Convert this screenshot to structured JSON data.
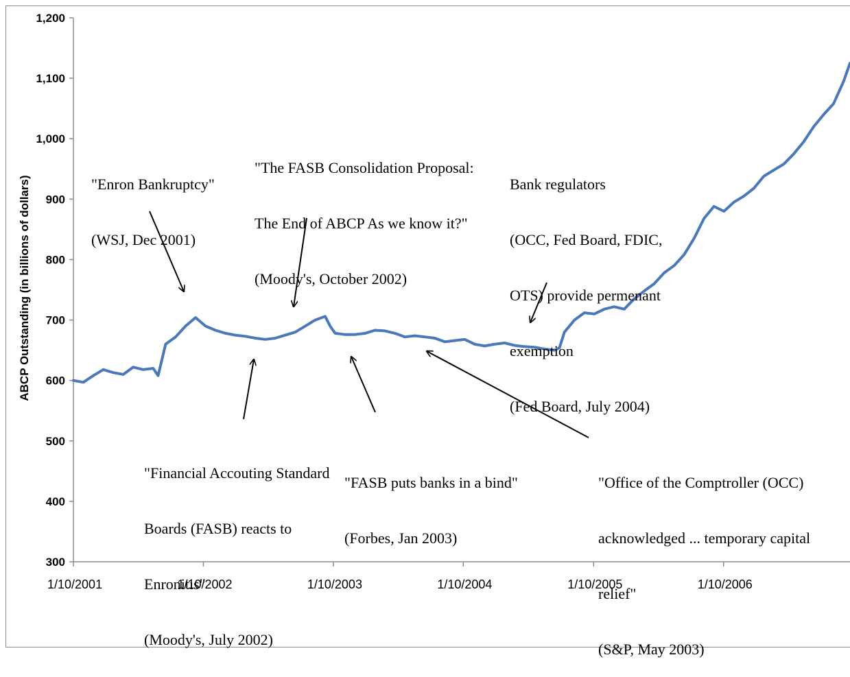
{
  "chart_data": {
    "type": "line",
    "title": "",
    "xlabel": "",
    "ylabel": "ABCP Outstanding (in billions of dollars)",
    "ylim": [
      300,
      1200
    ],
    "yticks": [
      300,
      400,
      500,
      600,
      700,
      800,
      900,
      1000,
      1100,
      1200
    ],
    "ytick_labels": [
      "300",
      "400",
      "500",
      "600",
      "700",
      "800",
      "900",
      "1,000",
      "1,100",
      "1,200"
    ],
    "xticks": [
      "1/10/2001",
      "1/10/2002",
      "1/10/2003",
      "1/10/2004",
      "1/10/2005",
      "1/10/2006"
    ],
    "xlim": [
      "2001-01-10",
      "2006-12-31"
    ],
    "grid": false,
    "line_color": "#4a78b8",
    "series": [
      {
        "name": "",
        "x": [
          "2001-01-10",
          "2001-02-07",
          "2001-03-07",
          "2001-04-04",
          "2001-05-02",
          "2001-05-30",
          "2001-06-27",
          "2001-07-25",
          "2001-08-22",
          "2001-09-05",
          "2001-09-26",
          "2001-10-24",
          "2001-11-21",
          "2001-12-19",
          "2002-01-16",
          "2002-02-13",
          "2002-03-13",
          "2002-04-10",
          "2002-05-08",
          "2002-06-05",
          "2002-07-03",
          "2002-07-31",
          "2002-08-28",
          "2002-09-25",
          "2002-10-23",
          "2002-11-20",
          "2002-12-18",
          "2003-01-01",
          "2003-01-15",
          "2003-02-12",
          "2003-03-12",
          "2003-04-09",
          "2003-05-07",
          "2003-06-04",
          "2003-07-02",
          "2003-07-30",
          "2003-08-27",
          "2003-09-24",
          "2003-10-22",
          "2003-11-19",
          "2003-12-17",
          "2004-01-14",
          "2004-02-11",
          "2004-03-10",
          "2004-04-07",
          "2004-05-05",
          "2004-06-02",
          "2004-06-30",
          "2004-07-28",
          "2004-08-25",
          "2004-09-22",
          "2004-10-06",
          "2004-10-20",
          "2004-11-17",
          "2004-12-15",
          "2005-01-12",
          "2005-02-09",
          "2005-03-09",
          "2005-04-06",
          "2005-05-04",
          "2005-06-01",
          "2005-06-29",
          "2005-07-27",
          "2005-08-24",
          "2005-09-21",
          "2005-10-19",
          "2005-11-16",
          "2005-12-14",
          "2006-01-11",
          "2006-02-08",
          "2006-03-08",
          "2006-04-05",
          "2006-05-03",
          "2006-05-31",
          "2006-06-28",
          "2006-07-26",
          "2006-08-23",
          "2006-09-20",
          "2006-10-18",
          "2006-11-15",
          "2006-12-13",
          "2006-12-31"
        ],
        "values": [
          600,
          597,
          608,
          618,
          613,
          610,
          622,
          618,
          620,
          608,
          660,
          672,
          690,
          704,
          690,
          683,
          678,
          675,
          673,
          670,
          668,
          670,
          675,
          680,
          690,
          700,
          706,
          690,
          678,
          676,
          676,
          678,
          683,
          682,
          678,
          672,
          674,
          672,
          670,
          664,
          666,
          668,
          660,
          657,
          660,
          662,
          658,
          656,
          655,
          652,
          650,
          654,
          680,
          700,
          712,
          710,
          718,
          722,
          718,
          735,
          748,
          760,
          778,
          790,
          808,
          835,
          868,
          888,
          880,
          895,
          905,
          918,
          938,
          948,
          958,
          975,
          995,
          1020,
          1040,
          1058,
          1095,
          1125
        ]
      }
    ],
    "annotations": [
      {
        "lines": [
          "\"Enron Bankruptcy\"",
          "(WSJ, Dec 2001)"
        ]
      },
      {
        "lines": [
          "\"The FASB Consolidation Proposal:",
          "The End of ABCP As we know it?\"",
          "(Moody's, October 2002)"
        ]
      },
      {
        "lines": [
          "Bank regulators",
          "(OCC, Fed Board, FDIC,",
          "OTS) provide permenant",
          "exemption",
          "(Fed Board, July 2004)"
        ]
      },
      {
        "lines": [
          "\"Financial Accouting Standard",
          "Boards (FASB) reacts to",
          "Enronitis\"",
          "(Moody's, July 2002)"
        ]
      },
      {
        "lines": [
          "\"FASB puts banks in a bind\"",
          "(Forbes, Jan 2003)"
        ]
      },
      {
        "lines": [
          "\"Office of the Comptroller (OCC)",
          "acknowledged ... temporary capital",
          "relief\"",
          "(S&P, May 2003)"
        ]
      }
    ]
  }
}
